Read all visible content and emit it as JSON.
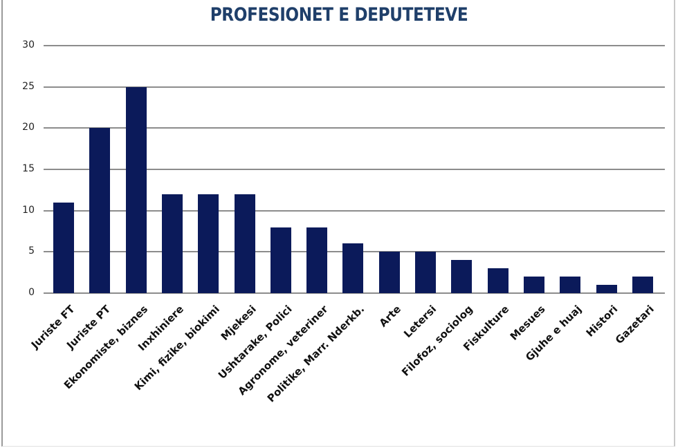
{
  "chart_data": {
    "type": "bar",
    "title": "PROFESIONET E DEPUTETEVE",
    "xlabel": "",
    "ylabel": "",
    "ylim": [
      0,
      30
    ],
    "yticks": [
      0,
      5,
      10,
      15,
      20,
      25,
      30
    ],
    "grid": true,
    "legend": null,
    "bar_color": "#0b1a5a",
    "categories": [
      "Juriste FT",
      "Juriste PT",
      "Ekonomiste, biznes",
      "Inxhiniere",
      "Kimi, fizike, biokimi",
      "Mjekesi",
      "Ushtarake, Polici",
      "Agronome, veteriner",
      "Politike, Marr. Nderkb.",
      "Arte",
      "Letersi",
      "Filofoz, sociolog",
      "Fiskulture",
      "Mesues",
      "Gjuhe e huaj",
      "Histori",
      "Gazetari"
    ],
    "values": [
      11,
      20,
      25,
      12,
      12,
      12,
      8,
      8,
      6,
      5,
      5,
      4,
      3,
      2,
      2,
      1,
      2
    ]
  }
}
